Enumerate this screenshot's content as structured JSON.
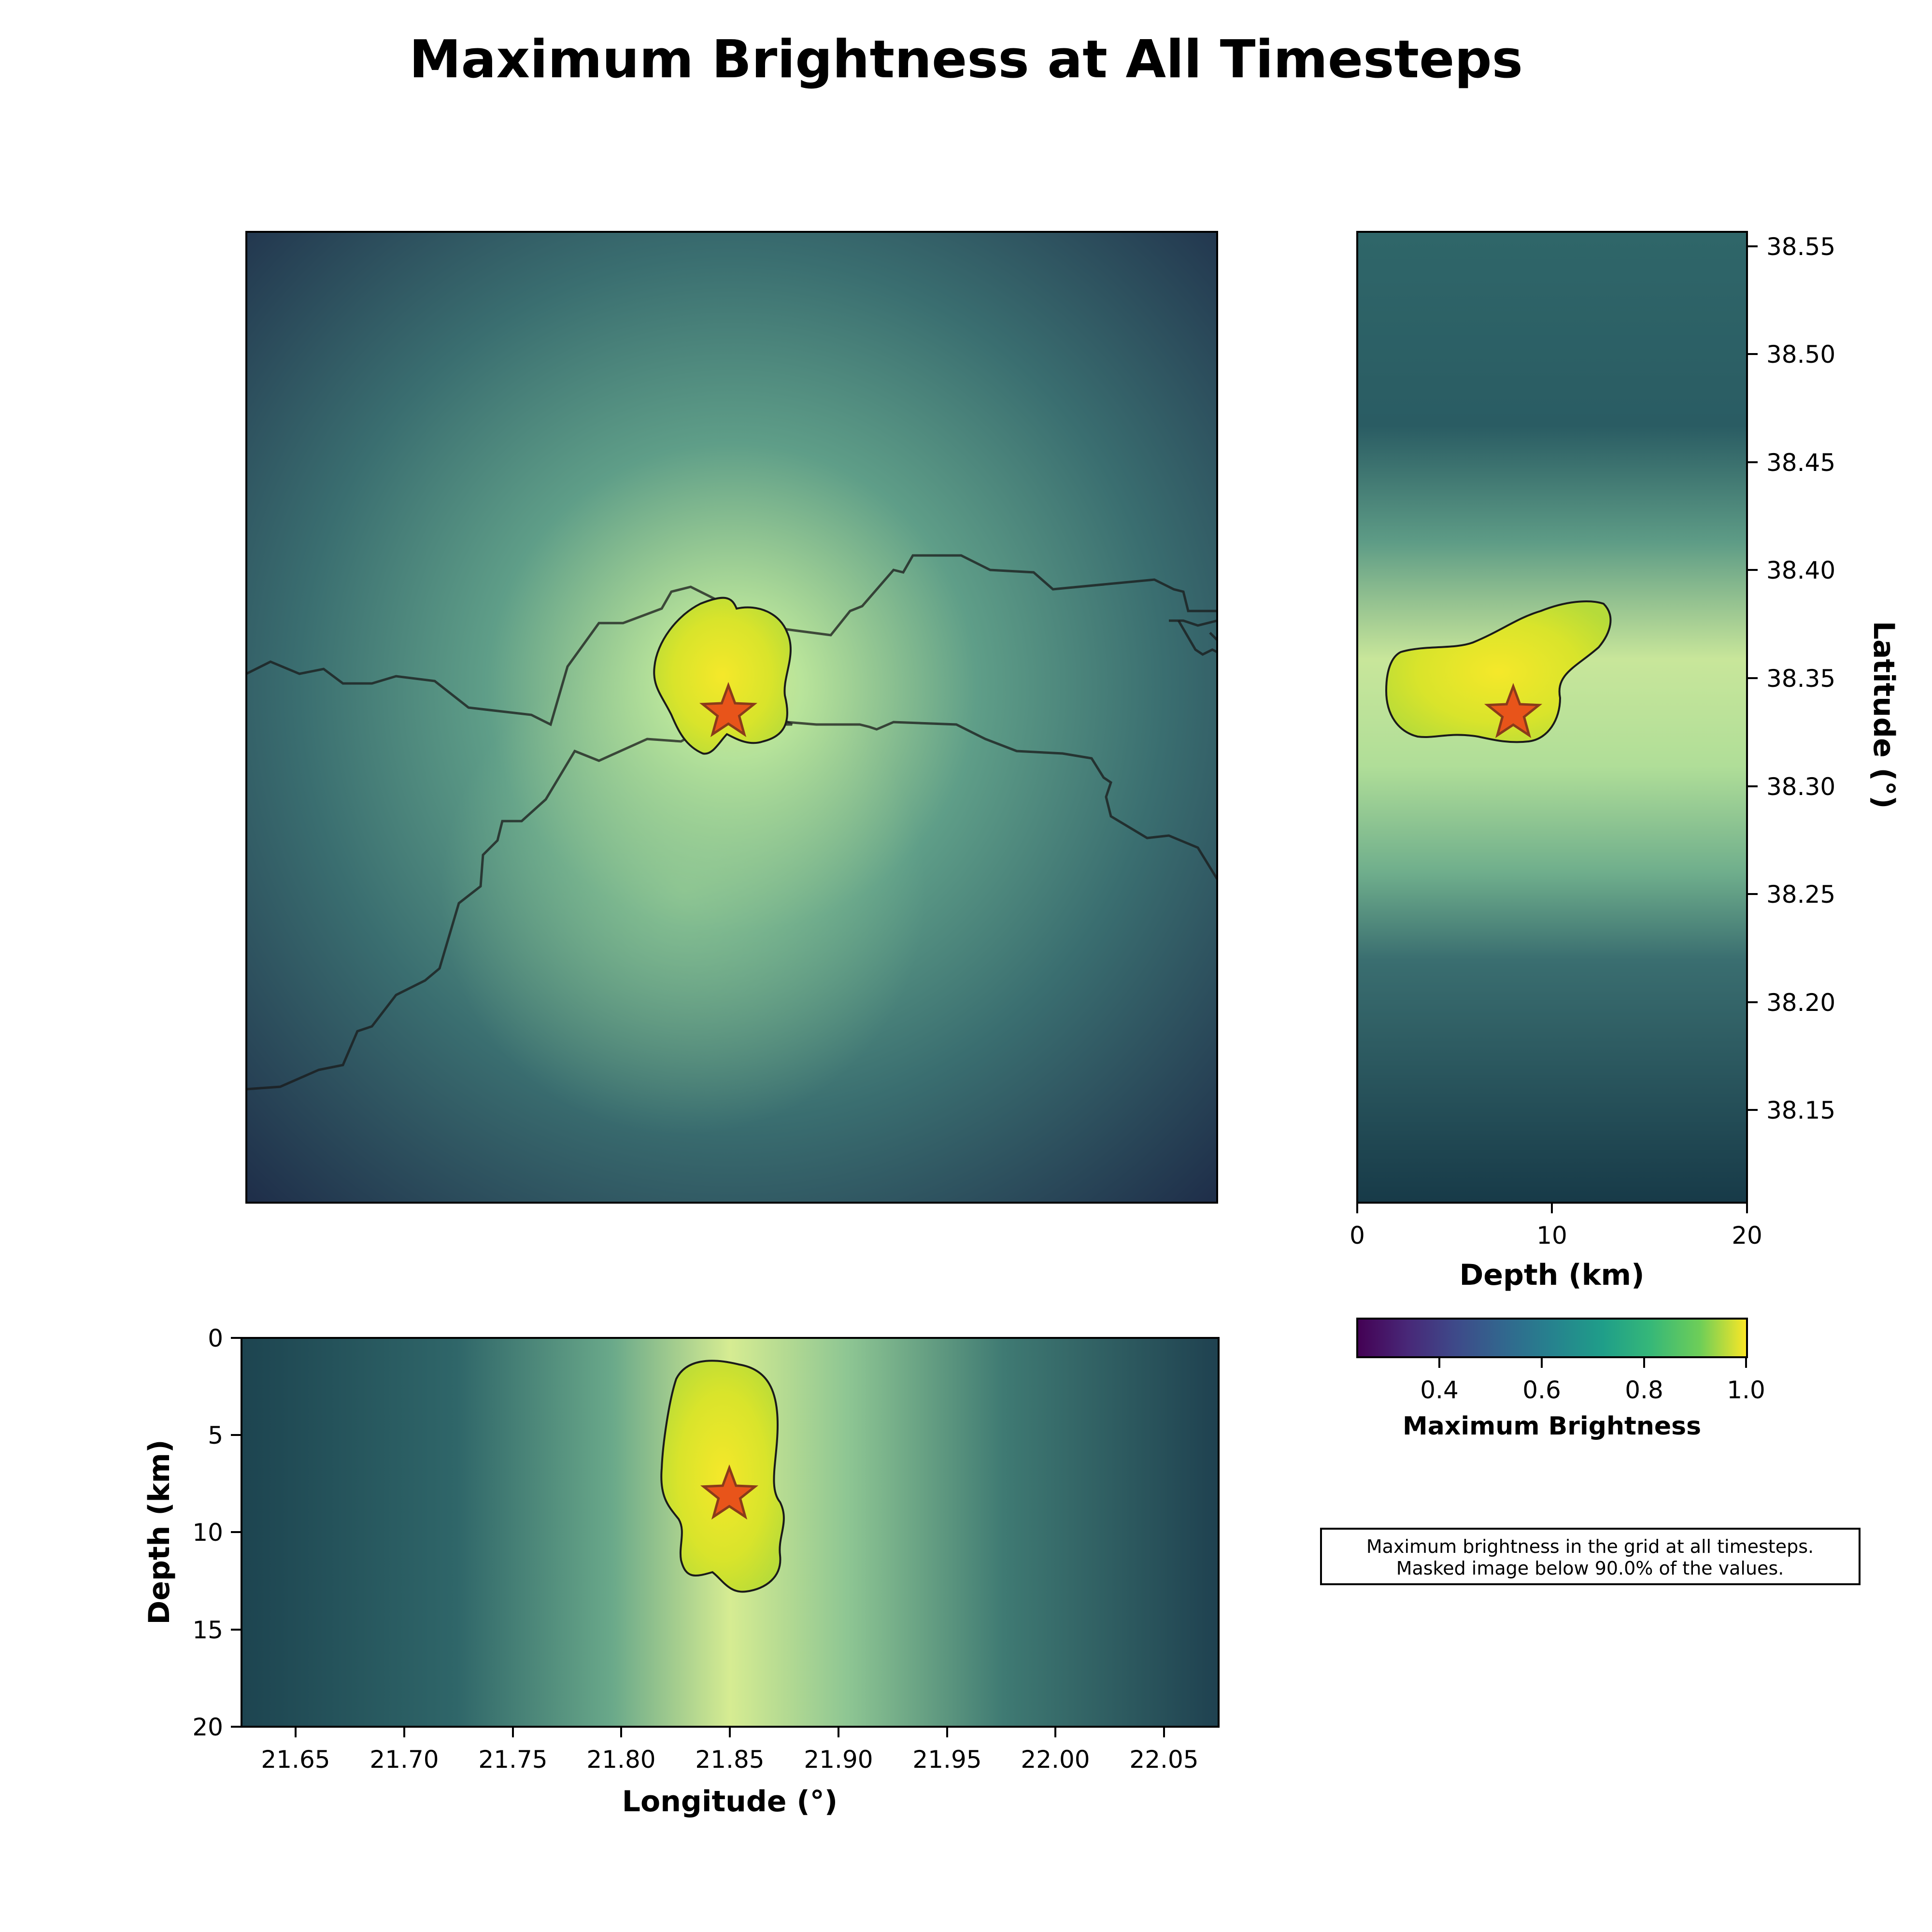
{
  "title": "Maximum Brightness at All Timesteps",
  "colors": {
    "background_dark": "#1f3a4d",
    "background_mid": "#3d7a74",
    "glow": "#b9e49a",
    "mask_fill": "#e6e827",
    "star_fill": "#e8541a",
    "star_edge": "#8a3b1a",
    "outline": "#1a1a1a"
  },
  "chart_data": [
    {
      "id": "map-view",
      "type": "heatmap",
      "xlabel": "",
      "ylabel": "",
      "xlim": [
        21.625,
        22.075
      ],
      "ylim": [
        38.11,
        38.555
      ],
      "annotations": [
        "source star at hypocenter",
        "coastline outlines"
      ],
      "source": {
        "lon": 21.85,
        "lat": 38.333
      }
    },
    {
      "id": "latitude-depth-view",
      "type": "heatmap",
      "xlabel": "Depth (km)",
      "ylabel": "Latitude (°)",
      "xlim": [
        0,
        20
      ],
      "ylim": [
        38.11,
        38.555
      ],
      "x_ticks": [
        "0",
        "10",
        "20"
      ],
      "y_ticks": [
        "38.15",
        "38.20",
        "38.25",
        "38.30",
        "38.35",
        "38.40",
        "38.45",
        "38.50",
        "38.55"
      ],
      "source": {
        "depth": 8,
        "lat": 38.333
      }
    },
    {
      "id": "longitude-depth-view",
      "type": "heatmap",
      "xlabel": "Longitude (°)",
      "ylabel": "Depth (km)",
      "xlim": [
        21.625,
        22.075
      ],
      "ylim": [
        20,
        0
      ],
      "x_ticks": [
        "21.65",
        "21.70",
        "21.75",
        "21.80",
        "21.85",
        "21.90",
        "21.95",
        "22.00",
        "22.05"
      ],
      "y_ticks": [
        "0",
        "5",
        "10",
        "15",
        "20"
      ],
      "source": {
        "lon": 21.85,
        "depth": 8
      }
    }
  ],
  "colorbar": {
    "label": "Maximum Brightness",
    "range": [
      0.27,
      1.0
    ],
    "ticks": [
      "0.4",
      "0.6",
      "0.8",
      "1.0"
    ],
    "colormap": "viridis"
  },
  "note": {
    "line1": "Maximum brightness in the grid at all timesteps.",
    "line2": "Masked image below 90.0% of the values."
  }
}
